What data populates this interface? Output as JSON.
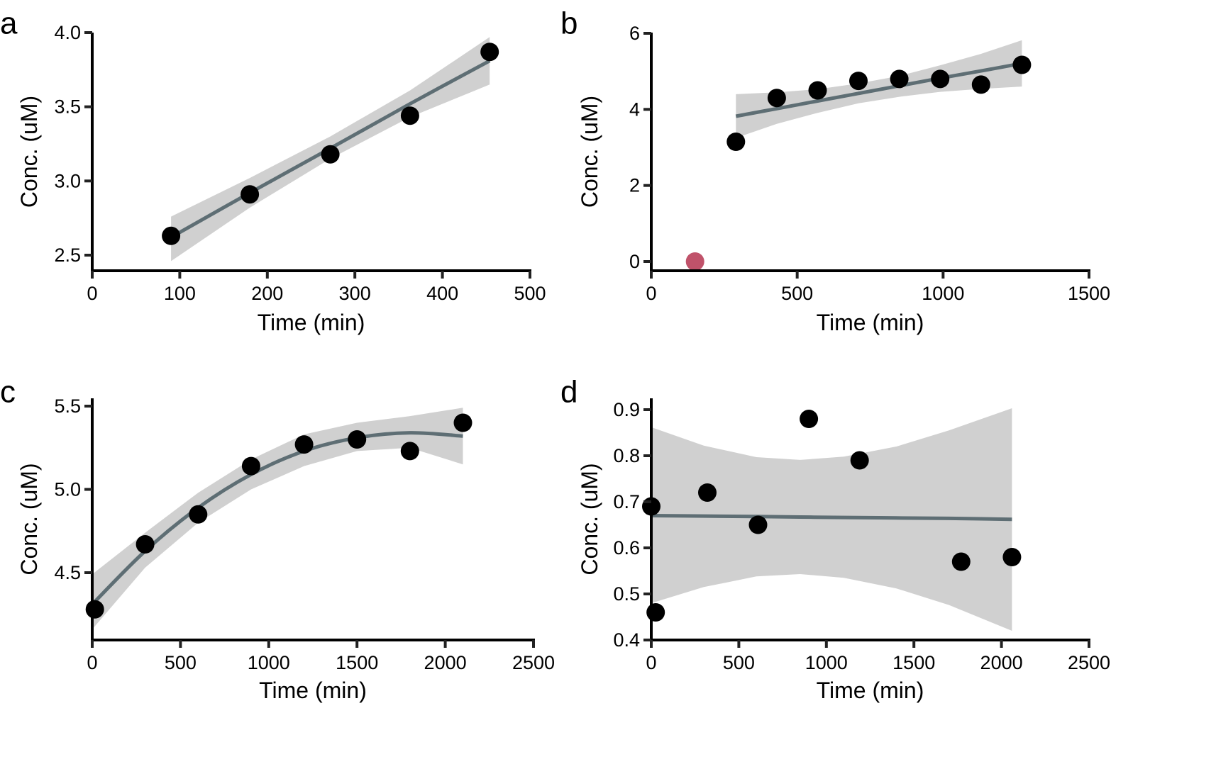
{
  "chart_data": [
    {
      "panel": "a",
      "type": "scatter",
      "title": "",
      "xlabel": "Time (min)",
      "ylabel": "Conc. (uM)",
      "xlim": [
        0,
        500
      ],
      "ylim": [
        2.4,
        4.0
      ],
      "xticks": [
        0,
        100,
        200,
        300,
        400,
        500
      ],
      "xtick_labels": [
        "0",
        "100",
        "200",
        "300",
        "400",
        "500"
      ],
      "yticks": [
        2.5,
        3.0,
        3.5,
        4.0
      ],
      "ytick_labels": [
        "2.5",
        "3.0",
        "3.5",
        "4.0"
      ],
      "grid": false,
      "points": [
        {
          "x": 90,
          "y": 2.63,
          "color": "#000000"
        },
        {
          "x": 180,
          "y": 2.91,
          "color": "#000000"
        },
        {
          "x": 272,
          "y": 3.18,
          "color": "#000000"
        },
        {
          "x": 363,
          "y": 3.44,
          "color": "#000000"
        },
        {
          "x": 454,
          "y": 3.87,
          "color": "#000000"
        }
      ],
      "fit": {
        "type": "linear",
        "x": [
          90,
          180,
          272,
          363,
          454
        ],
        "y": [
          2.62,
          2.92,
          3.22,
          3.52,
          3.81
        ],
        "ci_lower": [
          2.46,
          2.82,
          3.15,
          3.43,
          3.65
        ],
        "ci_upper": [
          2.76,
          3.02,
          3.3,
          3.61,
          3.97
        ]
      }
    },
    {
      "panel": "b",
      "type": "scatter",
      "title": "",
      "xlabel": "Time (min)",
      "ylabel": "Conc. (uM)",
      "xlim": [
        0,
        1500
      ],
      "ylim": [
        -0.25,
        6
      ],
      "xticks": [
        0,
        500,
        1000,
        1500
      ],
      "xtick_labels": [
        "0",
        "500",
        "1000",
        "1500"
      ],
      "yticks": [
        0,
        2,
        4,
        6
      ],
      "ytick_labels": [
        "0",
        "2",
        "4",
        "6"
      ],
      "grid": false,
      "points": [
        {
          "x": 150,
          "y": 0.0,
          "color": "#c0526a"
        },
        {
          "x": 290,
          "y": 3.15,
          "color": "#000000"
        },
        {
          "x": 430,
          "y": 4.3,
          "color": "#000000"
        },
        {
          "x": 570,
          "y": 4.5,
          "color": "#000000"
        },
        {
          "x": 710,
          "y": 4.75,
          "color": "#000000"
        },
        {
          "x": 850,
          "y": 4.8,
          "color": "#000000"
        },
        {
          "x": 990,
          "y": 4.8,
          "color": "#000000"
        },
        {
          "x": 1130,
          "y": 4.65,
          "color": "#000000"
        },
        {
          "x": 1270,
          "y": 5.17,
          "color": "#000000"
        }
      ],
      "fit": {
        "type": "linear",
        "x": [
          290,
          430,
          570,
          710,
          850,
          990,
          1130,
          1270
        ],
        "y": [
          3.82,
          4.02,
          4.22,
          4.42,
          4.62,
          4.82,
          5.01,
          5.21
        ],
        "ci_lower": [
          3.25,
          3.62,
          3.91,
          4.16,
          4.33,
          4.46,
          4.54,
          4.6
        ],
        "ci_upper": [
          4.4,
          4.45,
          4.53,
          4.68,
          4.88,
          5.16,
          5.46,
          5.82
        ]
      }
    },
    {
      "panel": "c",
      "type": "scatter",
      "title": "",
      "xlabel": "Time (min)",
      "ylabel": "Conc. (uM)",
      "xlim": [
        0,
        2500
      ],
      "ylim": [
        4.1,
        5.55
      ],
      "xticks": [
        0,
        500,
        1000,
        1500,
        2000,
        2500
      ],
      "xtick_labels": [
        "0",
        "500",
        "1000",
        "1500",
        "2000",
        "2500"
      ],
      "yticks": [
        4.5,
        5.0,
        5.5
      ],
      "ytick_labels": [
        "4.5",
        "5.0",
        "5.5"
      ],
      "grid": false,
      "points": [
        {
          "x": 15,
          "y": 4.28,
          "color": "#000000"
        },
        {
          "x": 300,
          "y": 4.67,
          "color": "#000000"
        },
        {
          "x": 600,
          "y": 4.85,
          "color": "#000000"
        },
        {
          "x": 900,
          "y": 5.14,
          "color": "#000000"
        },
        {
          "x": 1200,
          "y": 5.27,
          "color": "#000000"
        },
        {
          "x": 1500,
          "y": 5.3,
          "color": "#000000"
        },
        {
          "x": 1800,
          "y": 5.23,
          "color": "#000000"
        },
        {
          "x": 2100,
          "y": 5.4,
          "color": "#000000"
        }
      ],
      "fit": {
        "type": "quadratic",
        "x": [
          0,
          300,
          600,
          900,
          1200,
          1500,
          1800,
          2100
        ],
        "y": [
          4.31,
          4.63,
          4.89,
          5.09,
          5.23,
          5.31,
          5.34,
          5.32
        ],
        "ci_lower": [
          4.16,
          4.53,
          4.8,
          5.0,
          5.14,
          5.23,
          5.25,
          5.15
        ],
        "ci_upper": [
          4.49,
          4.74,
          4.98,
          5.18,
          5.33,
          5.4,
          5.44,
          5.49
        ]
      }
    },
    {
      "panel": "d",
      "type": "scatter",
      "title": "",
      "xlabel": "Time (min)",
      "ylabel": "Conc. (uM)",
      "xlim": [
        0,
        2500
      ],
      "ylim": [
        0.4,
        0.93
      ],
      "xticks": [
        0,
        500,
        1000,
        1500,
        2000,
        2500
      ],
      "xtick_labels": [
        "0",
        "500",
        "1000",
        "1500",
        "2000",
        "2500"
      ],
      "yticks": [
        0.4,
        0.5,
        0.6,
        0.7,
        0.8,
        0.9
      ],
      "ytick_labels": [
        "0.4",
        "0.5",
        "0.6",
        "0.7",
        "0.8",
        "0.9"
      ],
      "grid": false,
      "points": [
        {
          "x": 0,
          "y": 0.69,
          "color": "#000000"
        },
        {
          "x": 25,
          "y": 0.46,
          "color": "#000000"
        },
        {
          "x": 320,
          "y": 0.72,
          "color": "#000000"
        },
        {
          "x": 610,
          "y": 0.65,
          "color": "#000000"
        },
        {
          "x": 900,
          "y": 0.88,
          "color": "#000000"
        },
        {
          "x": 1190,
          "y": 0.79,
          "color": "#000000"
        },
        {
          "x": 1770,
          "y": 0.57,
          "color": "#000000"
        },
        {
          "x": 2060,
          "y": 0.58,
          "color": "#000000"
        }
      ],
      "fit": {
        "type": "linear",
        "x": [
          0,
          300,
          600,
          850,
          1100,
          1400,
          1700,
          2060
        ],
        "y": [
          0.67,
          0.669,
          0.668,
          0.667,
          0.666,
          0.665,
          0.664,
          0.662
        ],
        "ci_lower": [
          0.48,
          0.515,
          0.538,
          0.543,
          0.535,
          0.512,
          0.476,
          0.42
        ],
        "ci_upper": [
          0.862,
          0.822,
          0.797,
          0.791,
          0.798,
          0.82,
          0.855,
          0.903
        ]
      }
    }
  ]
}
